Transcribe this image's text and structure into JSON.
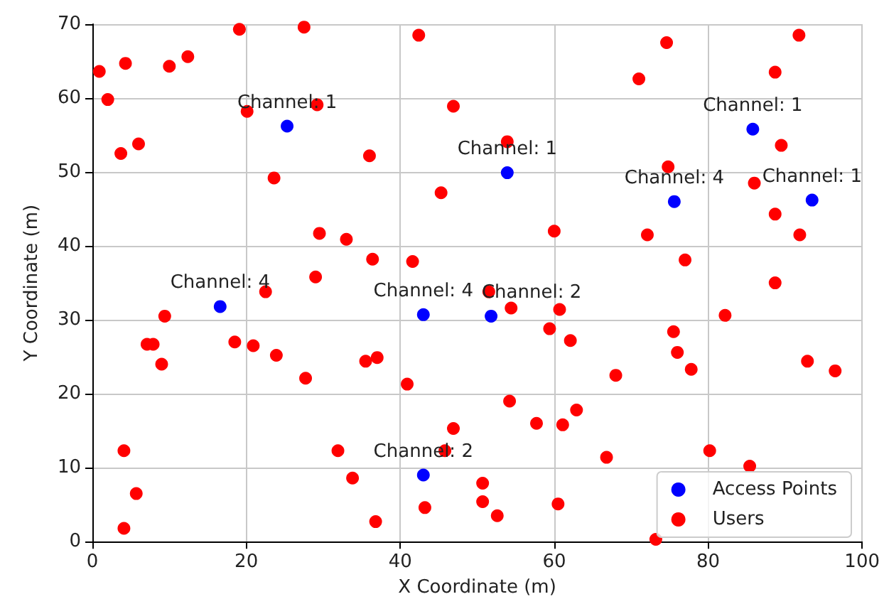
{
  "chart_data": {
    "type": "scatter",
    "xlabel": "X Coordinate (m)",
    "ylabel": "Y Coordinate (m)",
    "xlim": [
      0,
      100
    ],
    "xticks": [
      0,
      20,
      40,
      60,
      80,
      100
    ],
    "ylim": [
      0,
      70
    ],
    "yticks": [
      0,
      10,
      20,
      30,
      40,
      50,
      60,
      70
    ],
    "grid": true,
    "legend": "bottom right",
    "marker": "circle",
    "series": [
      {
        "name": "Access Points",
        "color": "#0000ff",
        "x": [
          25.3,
          53.9,
          85.8,
          75.6,
          93.5,
          16.6,
          43.0,
          51.8,
          43.0
        ],
        "values": [
          56.2,
          49.9,
          55.8,
          46.0,
          46.2,
          31.8,
          30.7,
          30.5,
          9.0
        ]
      },
      {
        "name": "Users",
        "color": "#ff0000",
        "x": [
          0.9,
          2.0,
          4.3,
          10.0,
          12.4,
          3.7,
          6.0,
          19.1,
          27.5,
          42.4,
          20.1,
          29.2,
          46.9,
          36.0,
          23.6,
          45.3,
          29.5,
          33.0,
          36.4,
          41.6,
          29.0,
          74.6,
          91.8,
          71.0,
          88.7,
          53.9,
          89.5,
          74.8,
          86.0,
          60.0,
          72.1,
          88.7,
          91.9,
          77.0,
          88.7,
          22.5,
          9.4,
          7.1,
          7.9,
          9.0,
          18.5,
          20.9,
          23.9,
          27.7,
          35.5,
          37.0,
          40.9,
          4.1,
          5.7,
          4.1,
          31.9,
          33.8,
          36.8,
          43.2,
          46.9,
          45.8,
          50.7,
          50.7,
          51.5,
          54.4,
          60.7,
          59.4,
          62.1,
          82.2,
          75.5,
          76.0,
          77.8,
          68.0,
          92.9,
          96.5,
          54.2,
          57.7,
          61.1,
          62.9,
          66.8,
          80.2,
          85.4,
          52.6,
          60.5,
          73.2
        ],
        "values": [
          63.6,
          59.8,
          64.7,
          64.3,
          65.6,
          52.5,
          53.8,
          69.3,
          69.6,
          68.5,
          58.2,
          59.1,
          58.9,
          52.2,
          49.2,
          47.2,
          41.7,
          40.9,
          38.2,
          37.9,
          35.8,
          67.5,
          68.5,
          62.6,
          63.5,
          54.1,
          53.6,
          50.7,
          48.5,
          42.0,
          41.5,
          44.3,
          41.5,
          38.1,
          35.0,
          33.8,
          30.5,
          26.7,
          26.7,
          24.0,
          27.0,
          26.5,
          25.2,
          22.1,
          24.4,
          24.9,
          21.3,
          12.3,
          6.5,
          1.8,
          12.3,
          8.6,
          2.7,
          4.6,
          15.3,
          12.3,
          7.9,
          5.4,
          33.8,
          31.6,
          31.4,
          28.8,
          27.2,
          30.6,
          28.4,
          25.6,
          23.3,
          22.5,
          24.4,
          23.1,
          19.0,
          16.0,
          15.8,
          17.8,
          11.4,
          12.3,
          10.2,
          3.5,
          5.1,
          0.3
        ]
      }
    ],
    "annotations": [
      {
        "text": "Channel: 1",
        "x": 25.3,
        "y": 56.2
      },
      {
        "text": "Channel: 1",
        "x": 53.9,
        "y": 49.9
      },
      {
        "text": "Channel: 1",
        "x": 85.8,
        "y": 55.8
      },
      {
        "text": "Channel: 4",
        "x": 75.6,
        "y": 46.0
      },
      {
        "text": "Channel: 1",
        "x": 93.5,
        "y": 46.2
      },
      {
        "text": "Channel: 4",
        "x": 16.6,
        "y": 31.8
      },
      {
        "text": "Channel: 4",
        "x": 43.0,
        "y": 30.7
      },
      {
        "text": "Channel: 2",
        "x": 51.8,
        "y": 30.5
      },
      {
        "text": "Channel: 2",
        "x": 43.0,
        "y": 9.0
      }
    ]
  }
}
